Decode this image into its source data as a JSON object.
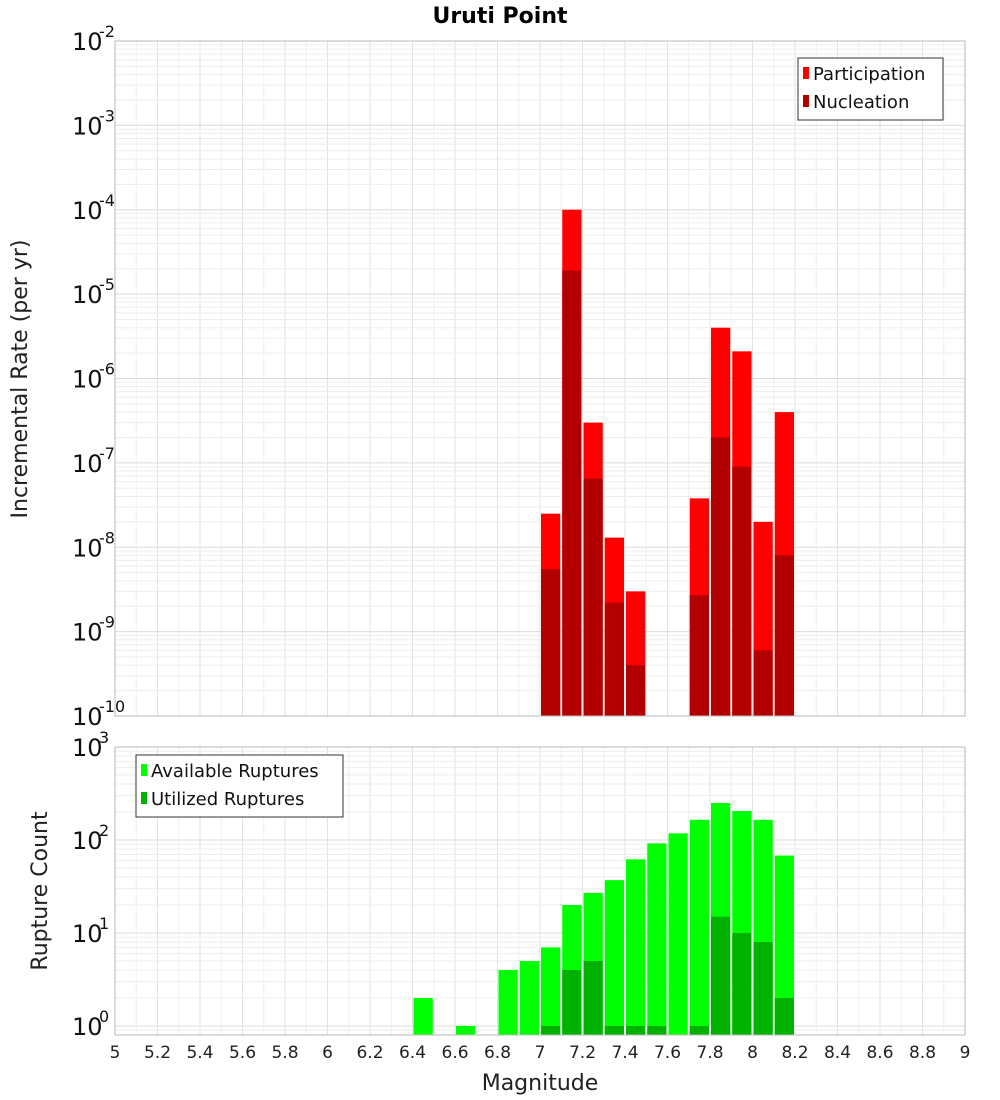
{
  "chart_data": [
    {
      "type": "bar",
      "title": "Uruti Point",
      "xlabel": "Magnitude",
      "ylabel": "Incremental Rate (per yr)",
      "y_scale": "log",
      "ylim": [
        1e-10,
        0.01
      ],
      "xlim": [
        5,
        9
      ],
      "x_ticks": [
        "5",
        "5.2",
        "5.4",
        "5.6",
        "5.8",
        "6",
        "6.2",
        "6.4",
        "6.6",
        "6.8",
        "7",
        "7.2",
        "7.4",
        "7.6",
        "7.8",
        "8",
        "8.2",
        "8.4",
        "8.6",
        "8.8",
        "9"
      ],
      "y_tick_exponents": [
        "-10",
        "-9",
        "-8",
        "-7",
        "-6",
        "-5",
        "-4",
        "-3",
        "-2"
      ],
      "grid": true,
      "legend_position": "top-right",
      "series": [
        {
          "name": "Participation",
          "color": "#ff0000",
          "x": [
            7.05,
            7.15,
            7.25,
            7.35,
            7.45,
            7.75,
            7.85,
            7.95,
            8.05,
            8.15
          ],
          "values": [
            2.5e-08,
            0.0001,
            3e-07,
            1.3e-08,
            3e-09,
            3.8e-08,
            4e-06,
            2.1e-06,
            2e-08,
            4e-07
          ]
        },
        {
          "name": "Nucleation",
          "color": "#b20000",
          "x": [
            7.05,
            7.15,
            7.25,
            7.35,
            7.45,
            7.75,
            7.85,
            7.95,
            8.05,
            8.15
          ],
          "values": [
            5.5e-09,
            1.9e-05,
            6.5e-08,
            2.2e-09,
            4e-10,
            2.7e-09,
            2e-07,
            9e-08,
            6e-10,
            8e-09
          ]
        }
      ]
    },
    {
      "type": "bar",
      "xlabel": "Magnitude",
      "ylabel": "Rupture Count",
      "y_scale": "log",
      "ylim": [
        0.8,
        1000
      ],
      "xlim": [
        5,
        9
      ],
      "y_tick_exponents": [
        "0",
        "1",
        "2",
        "3"
      ],
      "grid": true,
      "legend_position": "top-left",
      "series": [
        {
          "name": "Available Ruptures",
          "color": "#00ff00",
          "x": [
            6.45,
            6.65,
            6.85,
            6.95,
            7.05,
            7.15,
            7.25,
            7.35,
            7.45,
            7.55,
            7.65,
            7.75,
            7.85,
            7.95,
            8.05,
            8.15
          ],
          "values": [
            2,
            1,
            4,
            5,
            7,
            20,
            27,
            37,
            62,
            92,
            118,
            165,
            250,
            205,
            165,
            68
          ]
        },
        {
          "name": "Utilized Ruptures",
          "color": "#00b200",
          "x": [
            7.05,
            7.15,
            7.25,
            7.35,
            7.45,
            7.55,
            7.75,
            7.85,
            7.95,
            8.05,
            8.15
          ],
          "values": [
            1,
            4,
            5,
            1,
            1,
            1,
            1,
            15,
            10,
            8,
            2
          ]
        }
      ]
    }
  ]
}
